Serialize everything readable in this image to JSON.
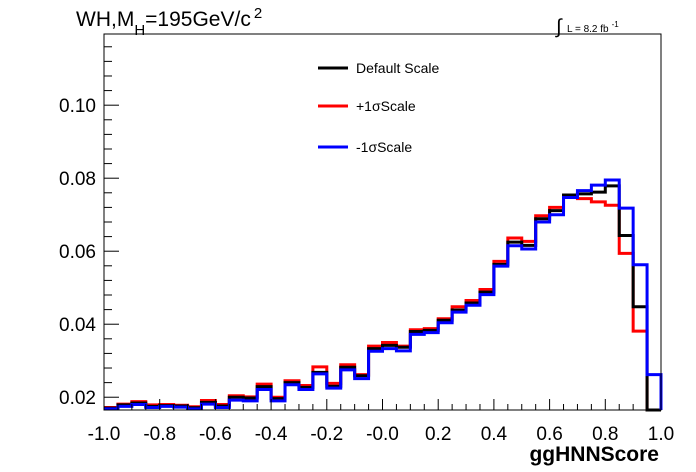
{
  "chart_data": {
    "type": "line",
    "title": {
      "main": "WH,M",
      "sub": "H",
      "rest": "=195GeV/c",
      "sup": "2"
    },
    "lumi": {
      "integral": "∫",
      "text": "L = 8.2 fb",
      "sup": "-1"
    },
    "xlabel": "ggHNNScore",
    "ylabel": "",
    "xlim": [
      -1.0,
      1.0
    ],
    "ylim": [
      0.0165,
      0.1195
    ],
    "x_ticks": [
      "-1.0",
      "-0.8",
      "-0.6",
      "-0.4",
      "-0.2",
      "-0.0",
      "0.2",
      "0.4",
      "0.6",
      "0.8",
      "1.0"
    ],
    "y_ticks": [
      "0.02",
      "0.04",
      "0.06",
      "0.08",
      "0.10"
    ],
    "legend_position": "top-center",
    "bin_edges": [
      -1.0,
      -0.95,
      -0.9,
      -0.85,
      -0.8,
      -0.75,
      -0.7,
      -0.65,
      -0.6,
      -0.55,
      -0.5,
      -0.45,
      -0.4,
      -0.35,
      -0.3,
      -0.25,
      -0.2,
      -0.15,
      -0.1,
      -0.05,
      0.0,
      0.05,
      0.1,
      0.15,
      0.2,
      0.25,
      0.3,
      0.35,
      0.4,
      0.45,
      0.5,
      0.55,
      0.6,
      0.65,
      0.7,
      0.75,
      0.8,
      0.85,
      0.9,
      0.95,
      1.0
    ],
    "series": [
      {
        "name": "Default Scale",
        "color": "#000000",
        "values": [
          0.017,
          0.0179,
          0.0184,
          0.0175,
          0.0177,
          0.0176,
          0.0171,
          0.0186,
          0.0176,
          0.02,
          0.0198,
          0.0229,
          0.0196,
          0.024,
          0.0227,
          0.0268,
          0.023,
          0.0282,
          0.0259,
          0.0333,
          0.0342,
          0.0337,
          0.038,
          0.0383,
          0.0411,
          0.0439,
          0.0458,
          0.0488,
          0.0564,
          0.0625,
          0.0616,
          0.0689,
          0.0711,
          0.0754,
          0.0757,
          0.0762,
          0.0779,
          0.0643,
          0.0448,
          0.0165
        ]
      },
      {
        "name": "+1σScale",
        "color": "#ff0000",
        "values": [
          0.0172,
          0.0181,
          0.0188,
          0.0179,
          0.018,
          0.0178,
          0.0174,
          0.0191,
          0.018,
          0.0204,
          0.0201,
          0.0236,
          0.02,
          0.0245,
          0.0232,
          0.0283,
          0.0238,
          0.0289,
          0.0262,
          0.034,
          0.035,
          0.034,
          0.0385,
          0.0388,
          0.0415,
          0.0448,
          0.0465,
          0.0495,
          0.0572,
          0.0636,
          0.0627,
          0.0697,
          0.072,
          0.0752,
          0.0744,
          0.0735,
          0.0726,
          0.0594,
          0.0381,
          0.0165
        ]
      },
      {
        "name": "-1σScale",
        "color": "#0000ff",
        "values": [
          0.0168,
          0.0175,
          0.018,
          0.0172,
          0.0175,
          0.0173,
          0.0168,
          0.0181,
          0.0172,
          0.0192,
          0.019,
          0.0221,
          0.019,
          0.0234,
          0.0221,
          0.0264,
          0.0225,
          0.0275,
          0.0251,
          0.0326,
          0.0333,
          0.0327,
          0.0372,
          0.0377,
          0.0404,
          0.0433,
          0.0452,
          0.0481,
          0.0559,
          0.0615,
          0.0606,
          0.068,
          0.07,
          0.0747,
          0.0766,
          0.0781,
          0.0795,
          0.0718,
          0.0563,
          0.0262
        ]
      }
    ]
  }
}
